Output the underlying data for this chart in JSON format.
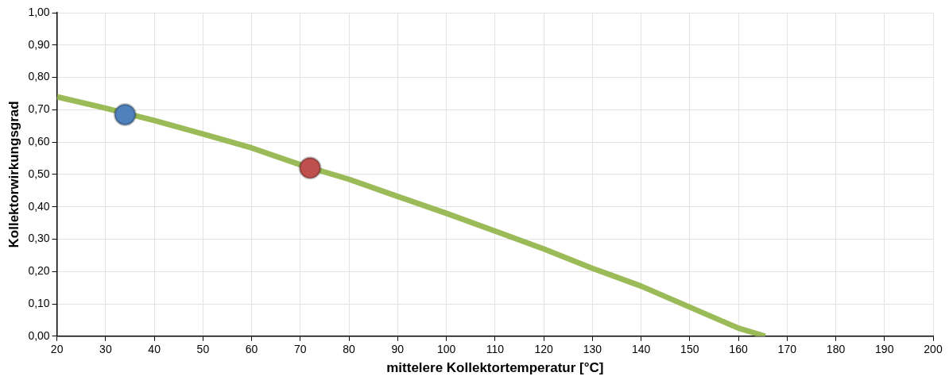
{
  "chart_data": {
    "type": "line",
    "xlabel": "mittelere Kollektortemperatur [°C]",
    "ylabel": "Kollektorwirkungsgrad",
    "series": [
      {
        "marker": "none",
        "color": "#9bbb59",
        "x": [
          20,
          30,
          40,
          50,
          60,
          70,
          80,
          90,
          100,
          110,
          120,
          130,
          140,
          150,
          160,
          165.5
        ],
        "values": [
          0.74,
          0.705,
          0.667,
          0.625,
          0.582,
          0.53,
          0.485,
          0.432,
          0.38,
          0.325,
          0.27,
          0.21,
          0.155,
          0.09,
          0.025,
          0
        ]
      },
      {
        "type": "scatter",
        "marker": "circle",
        "color": "#4f81bd",
        "x": [
          34
        ],
        "values": [
          0.685
        ]
      },
      {
        "type": "scatter",
        "marker": "circle",
        "color": "#c0504d",
        "x": [
          72
        ],
        "values": [
          0.52
        ]
      }
    ],
    "xlim": [
      20,
      200
    ],
    "xticks": [
      20,
      30,
      40,
      50,
      60,
      70,
      80,
      90,
      100,
      110,
      120,
      130,
      140,
      150,
      160,
      170,
      180,
      190,
      200
    ],
    "ylim": [
      0,
      1
    ],
    "yticks": [
      {
        "value": 0,
        "label": "0,00"
      },
      {
        "value": 0.1,
        "label": "0,10"
      },
      {
        "value": 0.2,
        "label": "0,20"
      },
      {
        "value": 0.3,
        "label": "0,30"
      },
      {
        "value": 0.4,
        "label": "0,40"
      },
      {
        "value": 0.5,
        "label": "0,50"
      },
      {
        "value": 0.6,
        "label": "0,60"
      },
      {
        "value": 0.7,
        "label": "0,70"
      },
      {
        "value": 0.8,
        "label": "0,80"
      },
      {
        "value": 0.9,
        "label": "0,90"
      },
      {
        "value": 1,
        "label": "1,00"
      }
    ],
    "grid": true,
    "legend": false,
    "line_style": "solid"
  }
}
